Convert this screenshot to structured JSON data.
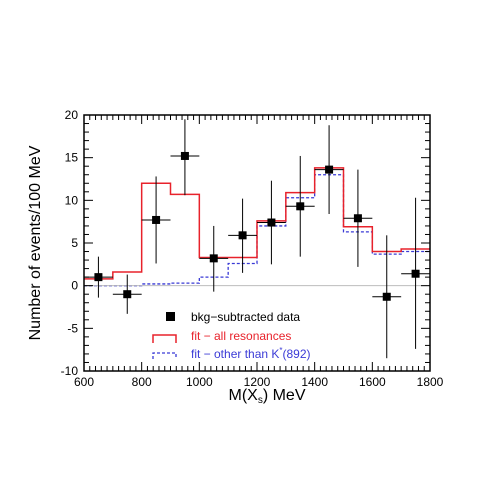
{
  "chart_data": {
    "type": "step",
    "xlabel": "M(X",
    "xlabel_sub": "s",
    "xlabel_tail": ")  MeV",
    "ylabel": "Number of events/100 MeV",
    "xlim": [
      600,
      1800
    ],
    "ylim": [
      -10,
      20
    ],
    "xticks": [
      600,
      800,
      1000,
      1200,
      1400,
      1600,
      1800
    ],
    "yticks": [
      -10,
      -5,
      0,
      5,
      10,
      15,
      20
    ],
    "xtick_labels": [
      "600",
      "800",
      "1000",
      "1200",
      "1400",
      "1600",
      "1800"
    ],
    "ytick_labels": [
      "-10",
      "-5",
      "0",
      "5",
      "10",
      "15",
      "20"
    ],
    "zero_line": true,
    "data_points": {
      "name": "bkg−subtracted data",
      "x": [
        650,
        750,
        850,
        950,
        1050,
        1150,
        1250,
        1350,
        1450,
        1550,
        1650,
        1750
      ],
      "y": [
        1.0,
        -1.0,
        7.7,
        15.2,
        3.2,
        5.9,
        7.4,
        9.3,
        13.6,
        7.9,
        -1.3,
        1.4
      ],
      "x_err": 50,
      "y_err_low": [
        2.4,
        2.3,
        5.1,
        4.6,
        3.9,
        4.4,
        4.9,
        5.9,
        5.2,
        5.7,
        7.2,
        8.8
      ],
      "y_err_high": [
        2.4,
        2.3,
        5.1,
        4.3,
        3.8,
        4.3,
        4.9,
        5.9,
        5.2,
        5.7,
        7.2,
        8.9
      ],
      "color": "#000000"
    },
    "series": [
      {
        "name": "fit − all resonances",
        "style": "solid",
        "color": "#e8222b",
        "bin_edges": [
          600,
          700,
          800,
          900,
          1000,
          1100,
          1200,
          1300,
          1400,
          1500,
          1600,
          1700,
          1800
        ],
        "values": [
          0.8,
          1.6,
          12.0,
          10.7,
          3.3,
          3.3,
          7.6,
          10.9,
          13.8,
          6.9,
          4.0,
          4.3
        ]
      },
      {
        "name": "fit − other than K",
        "name_sup": "*",
        "name_tail": "(892)",
        "style": "dashed",
        "color": "#3a3ad6",
        "bin_edges": [
          600,
          700,
          800,
          900,
          1000,
          1100,
          1200,
          1300,
          1400,
          1500,
          1600,
          1700,
          1800
        ],
        "values": [
          0.0,
          0.0,
          0.2,
          0.3,
          1.0,
          2.6,
          7.0,
          10.3,
          13.0,
          6.3,
          3.7,
          4.0
        ]
      }
    ],
    "legend_position": "bottom-left-inside"
  }
}
